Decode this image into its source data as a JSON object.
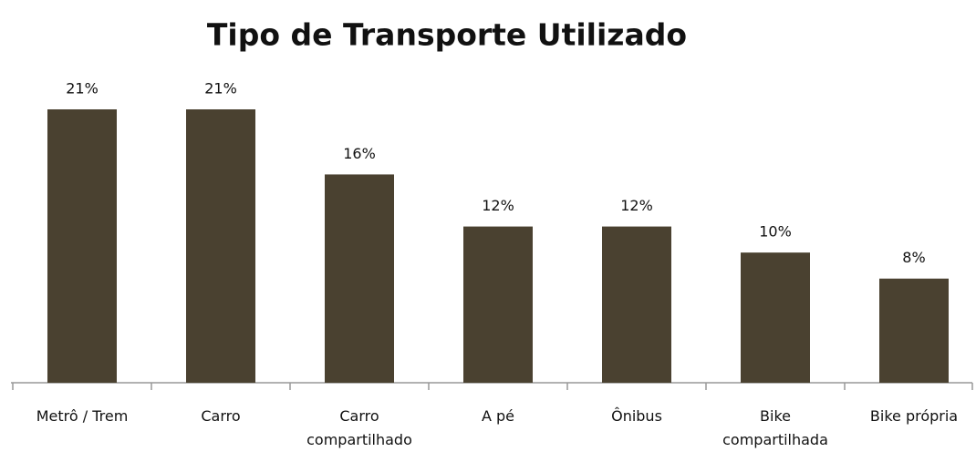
{
  "chart_data": {
    "type": "bar",
    "title": "Tipo de Transporte Utilizado",
    "categories": [
      "Metrô / Trem",
      "Carro",
      "Carro compartilhado",
      "A pé",
      "Ônibus",
      "Bike compartilhada",
      "Bike própria"
    ],
    "values": [
      21,
      21,
      16,
      12,
      12,
      10,
      8
    ],
    "value_labels": [
      "21%",
      "21%",
      "16%",
      "12%",
      "12%",
      "10%",
      "8%"
    ],
    "color": "#4a4130"
  }
}
